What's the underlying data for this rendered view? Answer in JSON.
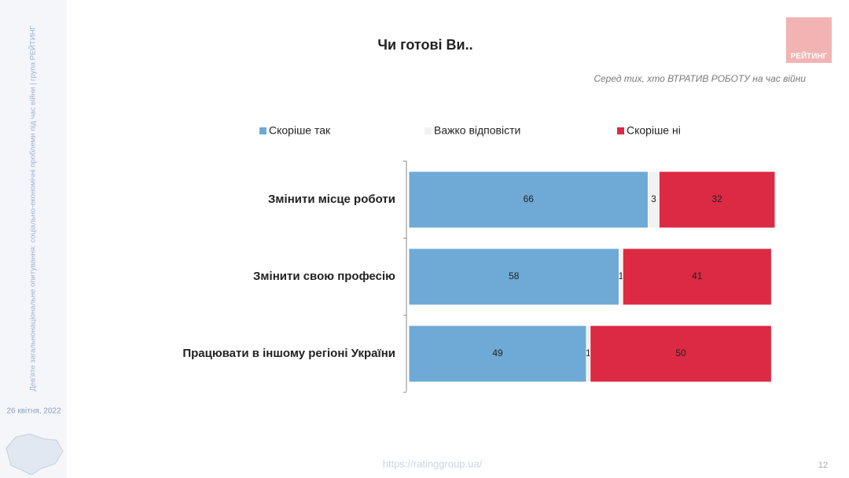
{
  "slide": {
    "sidebar_text": "Дев'яте загальнонаціональне опитування: соціально-економічні проблеми під час війни | група РЕЙТИНГ",
    "date": "26 квітня, 2022",
    "logo": "РЕЙТИНГ",
    "url": "https://ratinggroup.ua/",
    "page": "12"
  },
  "chart_data": {
    "type": "stacked-bar-horizontal",
    "title": "Чи готові Ви..",
    "subtitle": "Серед тих, хто ВТРАТИВ РОБОТУ на час війни",
    "categories": [
      "Змінити місце роботи",
      "Змінити свою професію",
      "Працювати в іншому регіоні України"
    ],
    "series": [
      {
        "name": "Скоріше так",
        "color": "#6eaad5",
        "values": [
          66,
          58,
          49
        ]
      },
      {
        "name": "Важко відповісти",
        "color": "#f2f2f2",
        "values": [
          3,
          1,
          1
        ]
      },
      {
        "name": "Скоріше ні",
        "color": "#dc2944",
        "values": [
          32,
          41,
          50
        ]
      }
    ]
  }
}
